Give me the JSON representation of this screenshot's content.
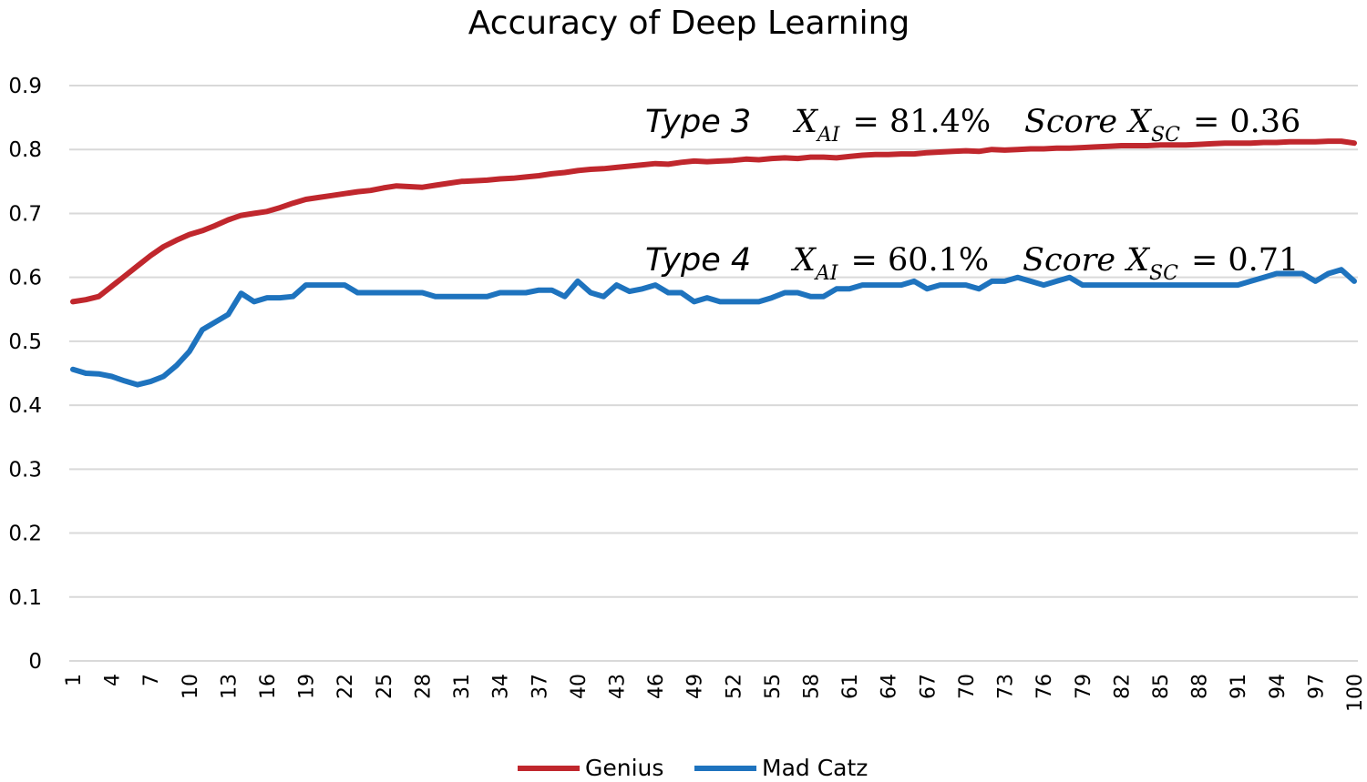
{
  "chart_data": {
    "type": "line",
    "title": "Accuracy of Deep Learning",
    "xlabel": "",
    "ylabel": "",
    "ylim": [
      0,
      0.9
    ],
    "yticks": [
      0,
      0.1,
      0.2,
      0.3,
      0.4,
      0.5,
      0.6,
      0.7,
      0.8,
      0.9
    ],
    "ytick_labels": [
      "0",
      "0.1",
      "0.2",
      "0.3",
      "0.4",
      "0.5",
      "0.6",
      "0.7",
      "0.8",
      "0.9"
    ],
    "xlim": [
      1,
      100
    ],
    "xtick_labels": [
      "1",
      "4",
      "7",
      "10",
      "13",
      "16",
      "19",
      "22",
      "25",
      "28",
      "31",
      "34",
      "37",
      "40",
      "43",
      "46",
      "49",
      "52",
      "55",
      "58",
      "61",
      "64",
      "67",
      "70",
      "73",
      "76",
      "79",
      "82",
      "85",
      "88",
      "91",
      "94",
      "97",
      "100"
    ],
    "grid": true,
    "legend_position": "bottom",
    "series": [
      {
        "name": "Genius",
        "color": "#c0272d",
        "values": [
          0.562,
          0.565,
          0.57,
          0.586,
          0.602,
          0.618,
          0.634,
          0.648,
          0.658,
          0.667,
          0.673,
          0.681,
          0.69,
          0.697,
          0.7,
          0.703,
          0.709,
          0.716,
          0.722,
          0.725,
          0.728,
          0.731,
          0.734,
          0.736,
          0.74,
          0.743,
          0.742,
          0.741,
          0.744,
          0.747,
          0.75,
          0.751,
          0.752,
          0.754,
          0.755,
          0.757,
          0.759,
          0.762,
          0.764,
          0.767,
          0.769,
          0.77,
          0.772,
          0.774,
          0.776,
          0.778,
          0.777,
          0.78,
          0.782,
          0.781,
          0.782,
          0.783,
          0.785,
          0.784,
          0.786,
          0.787,
          0.786,
          0.788,
          0.788,
          0.787,
          0.789,
          0.791,
          0.792,
          0.792,
          0.793,
          0.793,
          0.795,
          0.796,
          0.797,
          0.798,
          0.797,
          0.8,
          0.799,
          0.8,
          0.801,
          0.801,
          0.802,
          0.802,
          0.803,
          0.804,
          0.805,
          0.806,
          0.806,
          0.806,
          0.807,
          0.807,
          0.807,
          0.808,
          0.809,
          0.81,
          0.81,
          0.81,
          0.811,
          0.811,
          0.812,
          0.812,
          0.812,
          0.813,
          0.813,
          0.81
        ]
      },
      {
        "name": "Mad Catz",
        "color": "#1e73be",
        "values": [
          0.456,
          0.45,
          0.449,
          0.445,
          0.438,
          0.432,
          0.437,
          0.445,
          0.462,
          0.484,
          0.518,
          0.53,
          0.542,
          0.575,
          0.562,
          0.568,
          0.568,
          0.57,
          0.588,
          0.588,
          0.588,
          0.588,
          0.576,
          0.576,
          0.576,
          0.576,
          0.576,
          0.576,
          0.57,
          0.57,
          0.57,
          0.57,
          0.57,
          0.576,
          0.576,
          0.576,
          0.58,
          0.58,
          0.57,
          0.594,
          0.576,
          0.57,
          0.588,
          0.578,
          0.582,
          0.588,
          0.576,
          0.576,
          0.562,
          0.568,
          0.562,
          0.562,
          0.562,
          0.562,
          0.568,
          0.576,
          0.576,
          0.57,
          0.57,
          0.582,
          0.582,
          0.588,
          0.588,
          0.588,
          0.588,
          0.594,
          0.582,
          0.588,
          0.588,
          0.588,
          0.582,
          0.594,
          0.594,
          0.6,
          0.594,
          0.588,
          0.594,
          0.6,
          0.588,
          0.588,
          0.588,
          0.588,
          0.588,
          0.588,
          0.588,
          0.588,
          0.588,
          0.588,
          0.588,
          0.588,
          0.588,
          0.594,
          0.6,
          0.606,
          0.606,
          0.606,
          0.594,
          0.606,
          0.612,
          0.594
        ]
      }
    ],
    "annotations": [
      {
        "type_label": "Type 3",
        "xai_var": "X",
        "xai_sub": "AI",
        "xai_value": "= 81.4%",
        "score_word": "Score",
        "xsc_var": "X",
        "xsc_sub": "SC",
        "xsc_value": "= 0.36"
      },
      {
        "type_label": "Type 4",
        "xai_var": "X",
        "xai_sub": "AI",
        "xai_value": "= 60.1%",
        "score_word": "Score",
        "xsc_var": "X",
        "xsc_sub": "SC",
        "xsc_value": "= 0.71"
      }
    ]
  }
}
